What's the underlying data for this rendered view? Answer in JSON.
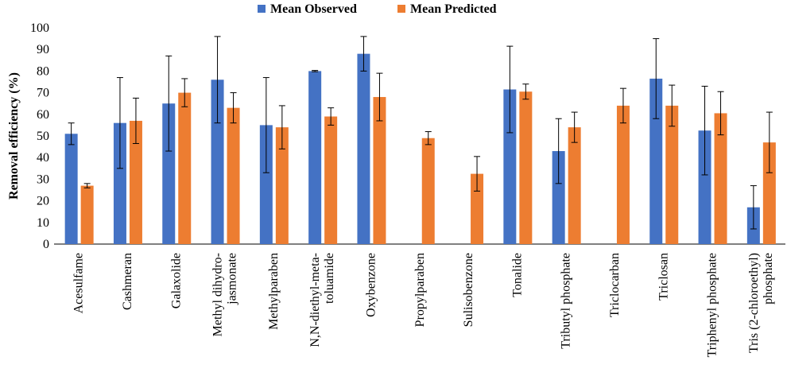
{
  "chart_data": {
    "type": "bar",
    "ylabel": "Removal efficiency (%)",
    "xlabel": "",
    "ylim": [
      0,
      100
    ],
    "yticks": [
      0,
      10,
      20,
      30,
      40,
      50,
      60,
      70,
      80,
      90,
      100
    ],
    "legend_position": "top-center",
    "grid": false,
    "categories": [
      [
        "Acesulfame"
      ],
      [
        "Cashmeran"
      ],
      [
        "Galaxolide"
      ],
      [
        "Methyl dihydro-",
        "jasmonate"
      ],
      [
        "Methylparaben"
      ],
      [
        "N,N-diethyl-meta-",
        "toluamide"
      ],
      [
        "Oxybenzone"
      ],
      [
        "Propylparaben"
      ],
      [
        "Sulisobenzone"
      ],
      [
        "Tonalide"
      ],
      [
        "Tributyl phosphate"
      ],
      [
        "Triclocarban"
      ],
      [
        "Triclosan"
      ],
      [
        "Triphenyl phosphate"
      ],
      [
        "Tris (2-chloroethyl)",
        "phosphate"
      ]
    ],
    "series": [
      {
        "name": "Mean Observed",
        "color": "#4472C4",
        "values": [
          51,
          56,
          65,
          76,
          55,
          80,
          88,
          null,
          null,
          71.5,
          43,
          null,
          76.5,
          52.5,
          17
        ],
        "error": [
          5,
          21,
          22,
          20,
          22,
          0.3,
          8,
          null,
          null,
          20,
          15,
          null,
          18.5,
          20.5,
          10
        ]
      },
      {
        "name": "Mean Predicted",
        "color": "#ED7D31",
        "values": [
          27,
          57,
          70,
          63,
          54,
          59,
          68,
          null,
          null,
          70.5,
          54,
          64,
          64,
          60.5,
          47
        ],
        "error": [
          1,
          10.5,
          6.5,
          7,
          10,
          4,
          11,
          null,
          null,
          3.5,
          7,
          8,
          9.5,
          10,
          14
        ]
      }
    ],
    "series_extra": {
      "Mean Predicted": {
        "Propylparaben": [
          49,
          3
        ],
        "Sulisobenzone": [
          32.5,
          8
        ]
      }
    }
  }
}
